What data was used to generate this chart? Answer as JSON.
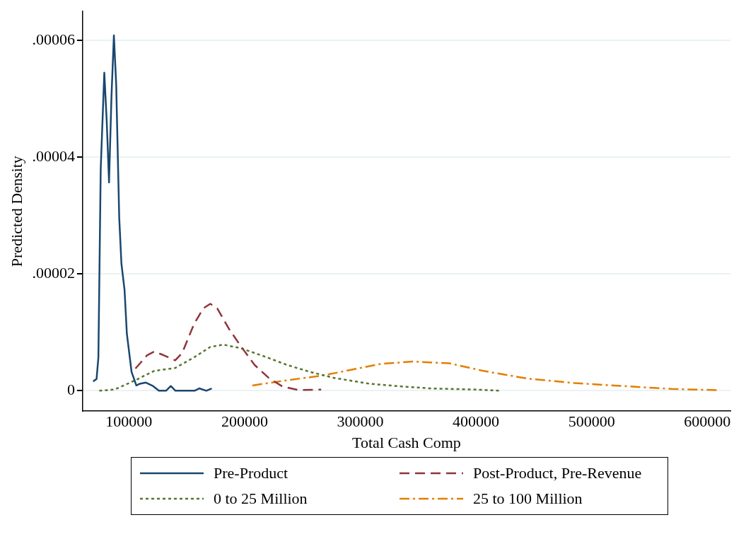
{
  "chart_data": {
    "type": "line",
    "xlabel": "Total Cash Comp",
    "ylabel": "Predicted Density",
    "xlim": [
      60000,
      620000
    ],
    "xticks": [
      100000,
      200000,
      300000,
      400000,
      500000,
      600000
    ],
    "ylim": [
      -3.5e-06,
      6.5e-05
    ],
    "yticks": [
      {
        "value": 0,
        "label": "0"
      },
      {
        "value": 2e-05,
        "label": ".00002"
      },
      {
        "value": 4e-05,
        "label": ".00004"
      },
      {
        "value": 6e-05,
        "label": ".00006"
      }
    ],
    "grid": "y",
    "legend": "bottom",
    "marker": "none",
    "series": [
      {
        "name": "Pre-Product",
        "color": "#1a476f",
        "line_style": "solid",
        "x": [
          69100,
          72000,
          73600,
          75600,
          78700,
          80800,
          82800,
          84900,
          87000,
          89000,
          91600,
          93500,
          96200,
          98200,
          102300,
          106400,
          109500,
          114600,
          120800,
          125900,
          132100,
          136200,
          140200,
          156700,
          160800,
          166900,
          171600
        ],
        "values": [
          1.6e-06,
          2e-06,
          5.7e-06,
          3.79e-05,
          5.45e-05,
          4.62e-05,
          3.57e-05,
          5.04e-05,
          6.09e-05,
          5.24e-05,
          2.97e-05,
          2.18e-05,
          1.73e-05,
          9.8e-06,
          3.2e-06,
          9e-07,
          1.2e-06,
          1.4e-06,
          8e-07,
          0,
          0,
          8e-07,
          0,
          0,
          4e-07,
          0,
          4e-07
        ]
      },
      {
        "name": "Post-Product, Pre-Revenue",
        "color": "#90353b",
        "line_style": "dashed",
        "x": [
          105600,
          115800,
          121800,
          129900,
          140000,
          146100,
          156200,
          164200,
          170300,
          176400,
          186500,
          196500,
          208700,
          220800,
          232900,
          247100,
          266200
        ],
        "values": [
          3.8e-06,
          6.1e-06,
          6.7e-06,
          6.1e-06,
          5.2e-06,
          6.5e-06,
          1.14e-05,
          1.41e-05,
          1.49e-05,
          1.41e-05,
          1.06e-05,
          7.7e-06,
          4.4e-06,
          2.2e-06,
          7e-07,
          1e-07,
          2e-07
        ]
      },
      {
        "name": "0 to 25 Million",
        "color": "#55752f",
        "line_style": "dotted",
        "x": [
          74400,
          87500,
          105600,
          121800,
          140000,
          156200,
          170300,
          181400,
          196500,
          216800,
          237000,
          257100,
          277400,
          307700,
          338000,
          360000,
          400000,
          420800
        ],
        "values": [
          0,
          2e-07,
          1.8e-06,
          3.4e-06,
          3.9e-06,
          5.7e-06,
          7.5e-06,
          7.9e-06,
          7.3e-06,
          5.9e-06,
          4.4e-06,
          3.2e-06,
          2.2e-06,
          1.2e-06,
          7e-07,
          4e-07,
          2e-07,
          0
        ]
      },
      {
        "name": "25 to 100 Million",
        "color": "#e37e00",
        "line_style": "dashdot",
        "x": [
          206700,
          237000,
          267300,
          297600,
          317800,
          345600,
          377100,
          406300,
          443900,
          485600,
          527400,
          569200,
          608900
        ],
        "values": [
          9e-07,
          1.8e-06,
          2.6e-06,
          3.8e-06,
          4.6e-06,
          5e-06,
          4.7e-06,
          3.4e-06,
          2.1e-06,
          1.3e-06,
          8e-07,
          3e-07,
          1e-07
        ]
      }
    ]
  }
}
